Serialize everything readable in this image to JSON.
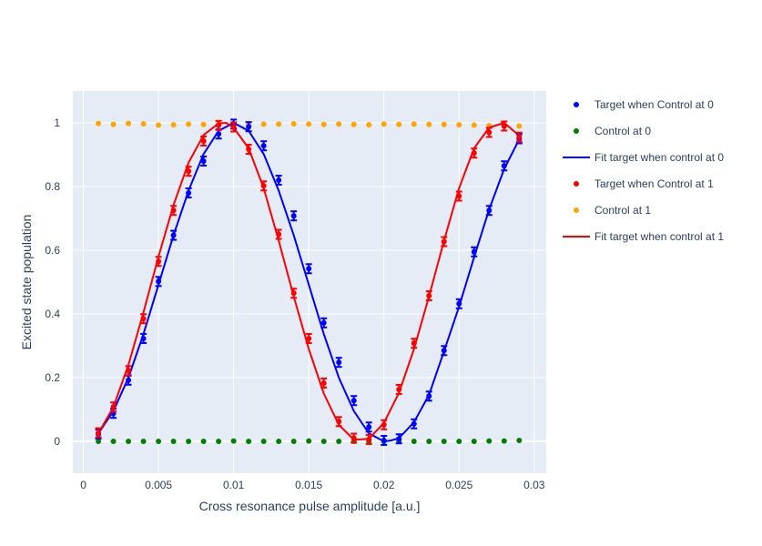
{
  "chart_data": {
    "type": "scatter",
    "xlabel": "Cross resonance pulse amplitude [a.u.]",
    "ylabel": "Excited state population",
    "xlim": [
      -0.0007,
      0.0308
    ],
    "ylim": [
      -0.1,
      1.1
    ],
    "x_ticks": [
      0,
      0.005,
      0.01,
      0.015,
      0.02,
      0.025,
      0.03
    ],
    "x_tick_labels": [
      "0",
      "0.005",
      "0.01",
      "0.015",
      "0.02",
      "0.025",
      "0.03"
    ],
    "y_ticks": [
      0,
      0.2,
      0.4,
      0.6,
      0.8,
      1
    ],
    "y_tick_labels": [
      "0",
      "0.2",
      "0.4",
      "0.6",
      "0.8",
      "1"
    ],
    "grid": true,
    "legend_position": "right",
    "plot_background": "#e5ecf6",
    "x": [
      0.001,
      0.002,
      0.003,
      0.004,
      0.005,
      0.006,
      0.007,
      0.008,
      0.009,
      0.01,
      0.011,
      0.012,
      0.013,
      0.014,
      0.015,
      0.016,
      0.017,
      0.018,
      0.019,
      0.02,
      0.021,
      0.022,
      0.023,
      0.024,
      0.025,
      0.026,
      0.027,
      0.028,
      0.029
    ],
    "series": [
      {
        "name": "Target when Control at 0",
        "kind": "markers",
        "error_bars": true,
        "color": "#0000ff",
        "values": [
          0.023,
          0.088,
          0.192,
          0.323,
          0.502,
          0.647,
          0.78,
          0.88,
          0.965,
          0.996,
          0.988,
          0.928,
          0.82,
          0.708,
          0.542,
          0.372,
          0.248,
          0.128,
          0.045,
          0.003,
          0.008,
          0.055,
          0.142,
          0.285,
          0.432,
          0.595,
          0.725,
          0.865,
          0.95
        ]
      },
      {
        "name": "Control at 0",
        "kind": "markers",
        "error_bars": false,
        "color": "#008000",
        "values": [
          0.0,
          0.0,
          0.0,
          0.0,
          0.0,
          0.0,
          0.0,
          0.0,
          0.0,
          0.001,
          0.0,
          0.0,
          0.0,
          0.0,
          0.001,
          0.0,
          0.0,
          0.0,
          0.0,
          0.0,
          0.0,
          0.0,
          0.0,
          0.0,
          0.0,
          0.0,
          0.001,
          0.001,
          0.003
        ]
      },
      {
        "name": "Fit target when control at 0",
        "kind": "line",
        "color": "#0000ff",
        "x": [
          0.001,
          0.002,
          0.003,
          0.004,
          0.005,
          0.006,
          0.007,
          0.008,
          0.009,
          0.01,
          0.011,
          0.012,
          0.013,
          0.014,
          0.015,
          0.016,
          0.017,
          0.018,
          0.019,
          0.02,
          0.0205,
          0.021,
          0.022,
          0.023,
          0.024,
          0.025,
          0.026,
          0.027,
          0.028,
          0.029
        ],
        "values": [
          0.025,
          0.095,
          0.2,
          0.337,
          0.492,
          0.647,
          0.787,
          0.902,
          0.975,
          1.0,
          0.975,
          0.902,
          0.787,
          0.647,
          0.492,
          0.337,
          0.2,
          0.095,
          0.025,
          0.0,
          0.003,
          0.01,
          0.06,
          0.146,
          0.283,
          0.423,
          0.578,
          0.728,
          0.855,
          0.948
        ]
      },
      {
        "name": "Target when Control at 1",
        "kind": "markers",
        "error_bars": true,
        "color": "#ff0000",
        "values": [
          0.027,
          0.108,
          0.222,
          0.385,
          0.565,
          0.725,
          0.848,
          0.943,
          0.992,
          0.987,
          0.917,
          0.802,
          0.65,
          0.465,
          0.323,
          0.183,
          0.062,
          0.01,
          0.006,
          0.052,
          0.163,
          0.308,
          0.457,
          0.627,
          0.77,
          0.905,
          0.97,
          0.99,
          0.955
        ]
      },
      {
        "name": "Control at 1",
        "kind": "markers",
        "error_bars": false,
        "color": "#ffa500",
        "values": [
          0.998,
          0.995,
          0.998,
          0.997,
          0.993,
          0.994,
          0.996,
          0.995,
          0.997,
          0.998,
          0.997,
          0.996,
          0.996,
          0.997,
          0.996,
          0.995,
          0.996,
          0.995,
          0.994,
          0.996,
          0.995,
          0.996,
          0.995,
          0.995,
          0.994,
          0.993,
          0.991,
          0.99,
          0.99
        ]
      },
      {
        "name": "Fit target when control at 1",
        "kind": "line",
        "color": "#ff0000",
        "x": [
          0.001,
          0.002,
          0.003,
          0.004,
          0.005,
          0.006,
          0.007,
          0.008,
          0.009,
          0.0095,
          0.01,
          0.011,
          0.012,
          0.013,
          0.014,
          0.015,
          0.016,
          0.017,
          0.018,
          0.019,
          0.02,
          0.021,
          0.022,
          0.023,
          0.024,
          0.025,
          0.026,
          0.027,
          0.028,
          0.029
        ],
        "values": [
          0.025,
          0.108,
          0.24,
          0.405,
          0.58,
          0.742,
          0.875,
          0.962,
          0.998,
          1.0,
          0.985,
          0.92,
          0.795,
          0.63,
          0.455,
          0.29,
          0.15,
          0.052,
          0.005,
          0.008,
          0.058,
          0.152,
          0.29,
          0.455,
          0.63,
          0.795,
          0.92,
          0.985,
          1.0,
          0.96
        ]
      }
    ]
  }
}
